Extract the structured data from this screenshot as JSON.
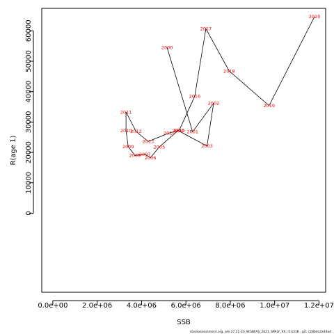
{
  "chart_data": {
    "type": "line",
    "title": "",
    "xlabel": "SSB",
    "ylabel": "R(age 1)",
    "xlim": [
      -500000,
      12300000
    ],
    "ylim": [
      -26000.0,
      67400
    ],
    "x_ticks": [
      0,
      2000000,
      4000000,
      6000000,
      8000000,
      10000000,
      12000000
    ],
    "x_tick_labels": [
      "0.0e+00",
      "2.0e+06",
      "4.0e+06",
      "6.0e+06",
      "8.0e+06",
      "1.0e+07",
      "1.2e+07"
    ],
    "y_ticks": [
      0,
      10000,
      20000,
      30000,
      40000,
      50000,
      60000
    ],
    "y_tick_labels": [
      "0",
      "10000",
      "20000",
      "30000",
      "40000",
      "50000",
      "60000"
    ],
    "grid": false,
    "line_color": "#000000",
    "label_color": "#ff0000",
    "series": [
      {
        "points": [
          {
            "label": "2000",
            "x": 5150000,
            "y": 54500
          },
          {
            "label": "2001",
            "x": 6300000,
            "y": 26800
          },
          {
            "label": "2002",
            "x": 7250000,
            "y": 36200
          },
          {
            "label": "2003",
            "x": 6950000,
            "y": 22100
          },
          {
            "label": "2004",
            "x": 5650000,
            "y": 27200
          },
          {
            "label": "2005",
            "x": 4800000,
            "y": 21800
          },
          {
            "label": "2006",
            "x": 4400000,
            "y": 18300
          },
          {
            "label": "2007",
            "x": 4150000,
            "y": 19400
          },
          {
            "label": "2008",
            "x": 3700000,
            "y": 19000
          },
          {
            "label": "2009",
            "x": 3400000,
            "y": 21900
          },
          {
            "label": "2010",
            "x": 3300000,
            "y": 27200
          },
          {
            "label": "2011",
            "x": 3300000,
            "y": 33300
          },
          {
            "label": "2012",
            "x": 3750000,
            "y": 26900
          },
          {
            "label": "2013",
            "x": 4300000,
            "y": 23600
          },
          {
            "label": "2014",
            "x": 5250000,
            "y": 26400
          },
          {
            "label": "2015",
            "x": 5700000,
            "y": 27300
          },
          {
            "label": "2016",
            "x": 6400000,
            "y": 38500
          },
          {
            "label": "2017",
            "x": 6900000,
            "y": 60700
          },
          {
            "label": "2018",
            "x": 7950000,
            "y": 46800
          },
          {
            "label": "2019",
            "x": 9750000,
            "y": 35400
          },
          {
            "label": "2020",
            "x": 11800000,
            "y": 64700
          }
        ],
        "path_order": [
          "2000",
          "2001",
          "2002",
          "2003",
          "2004",
          "2005",
          "2006",
          "2007",
          "2008",
          "2009",
          "2010",
          "2011",
          "2012",
          "2013",
          "2014",
          "2015",
          "2016",
          "2017",
          "2018",
          "2019",
          "2020"
        ]
      }
    ],
    "footnote": "stockassessment.org, ple.27.21-23_WGBFAS_2021_SPALY_XX, r14318 , git: c28bdc2a44ad"
  }
}
